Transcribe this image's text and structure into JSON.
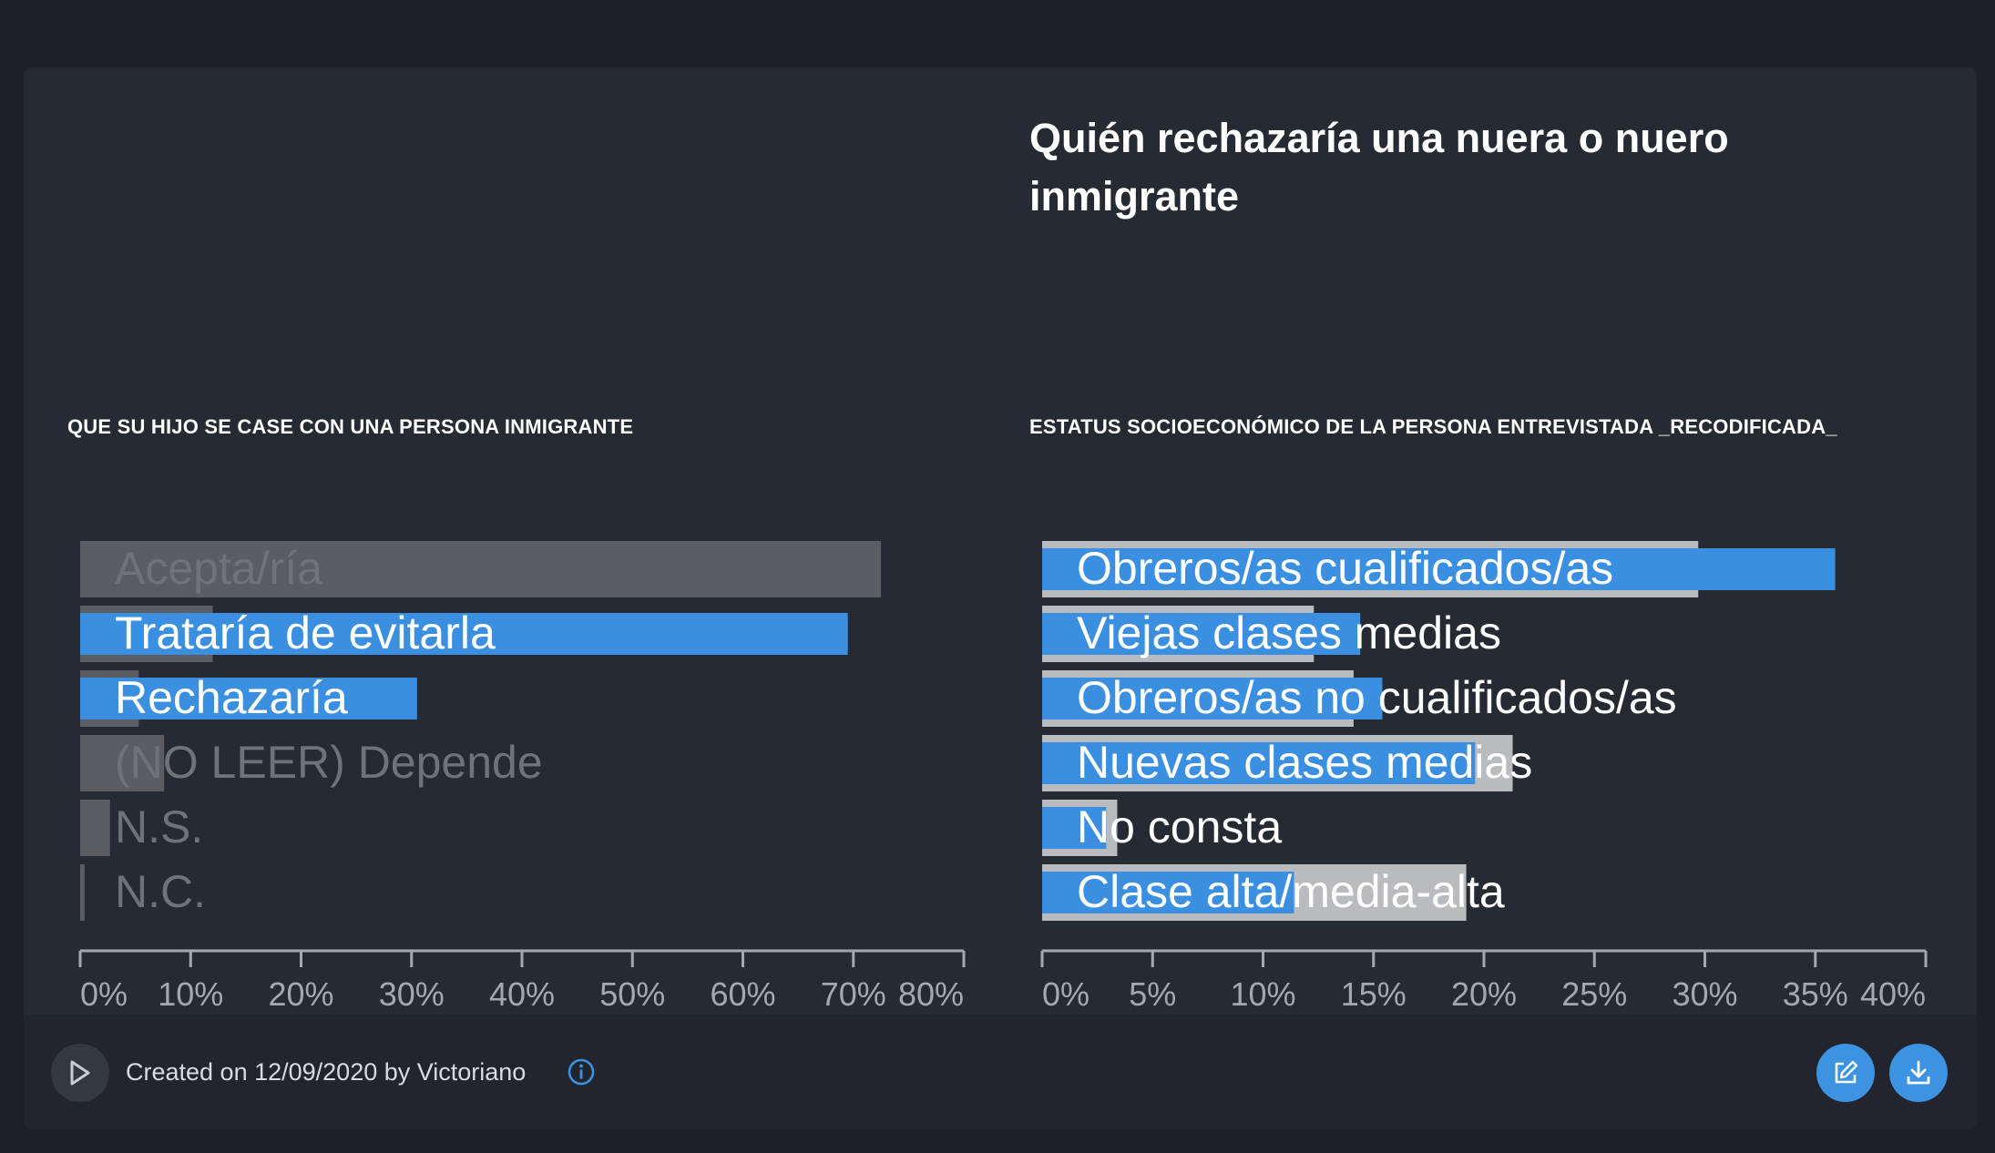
{
  "title": "Quién rechazaría una nuera o nuero inmigrante",
  "footer": {
    "created_text": "Created on 12/09/2020 by Victoriano",
    "play_icon": "play-icon",
    "info_icon": "info-icon",
    "edit_icon": "edit-icon",
    "download_icon": "download-icon"
  },
  "colors": {
    "highlight": "#3b8fe0",
    "left_reference": "#5b5d63",
    "right_reference": "#b9bbbe",
    "axis": "#a4a8b0"
  },
  "chart_data": [
    {
      "type": "bar",
      "orientation": "horizontal",
      "title": "QUE SU HIJO SE CASE CON UNA PERSONA INMIGRANTE",
      "categories": [
        "Acepta/ría",
        "Trataría de evitarla",
        "Rechazaría",
        "(NO LEER) Depende",
        "N.S.",
        "N.C."
      ],
      "series": [
        {
          "values": [
            72.5,
            12.0,
            5.3,
            7.6,
            2.7,
            0.4
          ]
        },
        {
          "values": [
            0,
            69.5,
            30.5,
            0,
            0,
            0
          ]
        }
      ],
      "xlim": [
        0,
        80
      ],
      "xticks": [
        "0%",
        "10%",
        "20%",
        "30%",
        "40%",
        "50%",
        "60%",
        "70%",
        "80%"
      ],
      "label_colors": [
        "#6f7279",
        "#ffffff",
        "#ffffff",
        "#6f7279",
        "#6f7279",
        "#6f7279"
      ]
    },
    {
      "type": "bar",
      "orientation": "horizontal",
      "title": "ESTATUS SOCIOECONÓMICO DE LA PERSONA ENTREVISTADA _RECODIFICADA_",
      "categories": [
        "Obreros/as cualificados/as",
        "Viejas clases medias",
        "Obreros/as no cualificados/as",
        "Nuevas clases medias",
        "No consta",
        "Clase alta/media-alta"
      ],
      "series": [
        {
          "values": [
            29.7,
            12.3,
            14.1,
            21.3,
            3.4,
            19.2
          ]
        },
        {
          "values": [
            35.9,
            14.4,
            15.4,
            19.6,
            2.9,
            11.4
          ]
        }
      ],
      "xlim": [
        0,
        40
      ],
      "xticks": [
        "0%",
        "5%",
        "10%",
        "15%",
        "20%",
        "25%",
        "30%",
        "35%",
        "40%"
      ],
      "label_colors": [
        "#ffffff",
        "#ffffff",
        "#ffffff",
        "#ffffff",
        "#ffffff",
        "#ffffff"
      ]
    }
  ]
}
